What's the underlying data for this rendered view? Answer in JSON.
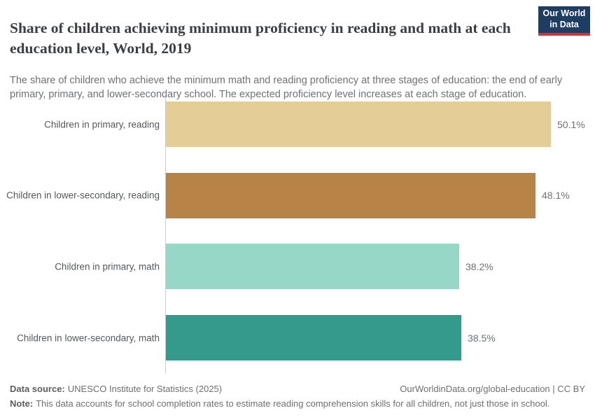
{
  "header": {
    "title": "Share of children achieving minimum proficiency in reading and math at each education level, World, 2019",
    "subtitle": "The share of children who achieve the minimum math and reading proficiency at three stages of education: the end of early primary, primary, and lower-secondary school. The expected proficiency level increases at each stage of education.",
    "logo": {
      "line1": "Our World",
      "line2": "in Data",
      "bg_color": "#1d3d63",
      "accent_color": "#dc3036"
    }
  },
  "chart_data": {
    "type": "bar",
    "orientation": "horizontal",
    "title": "Share of children achieving minimum proficiency in reading and math at each education level, World, 2019",
    "categories": [
      "Children in primary, reading",
      "Children in lower-secondary, reading",
      "Children in primary, math",
      "Children in lower-secondary, math"
    ],
    "values": [
      50.1,
      48.1,
      38.2,
      38.5
    ],
    "value_labels": [
      "50.1%",
      "48.1%",
      "38.2%",
      "38.5%"
    ],
    "colors": [
      "#e4cd96",
      "#b88347",
      "#97d7c8",
      "#349a8b"
    ],
    "unit": "%",
    "xlim": [
      0,
      56
    ],
    "grid": false,
    "legend": "none"
  },
  "footer": {
    "data_source_label": "Data source:",
    "data_source_value": "UNESCO Institute for Statistics (2025)",
    "link": "OurWorldinData.org/global-education | CC BY",
    "note_label": "Note:",
    "note_value": "This data accounts for school completion rates to estimate reading comprehension skills for all children, not just those in school."
  }
}
